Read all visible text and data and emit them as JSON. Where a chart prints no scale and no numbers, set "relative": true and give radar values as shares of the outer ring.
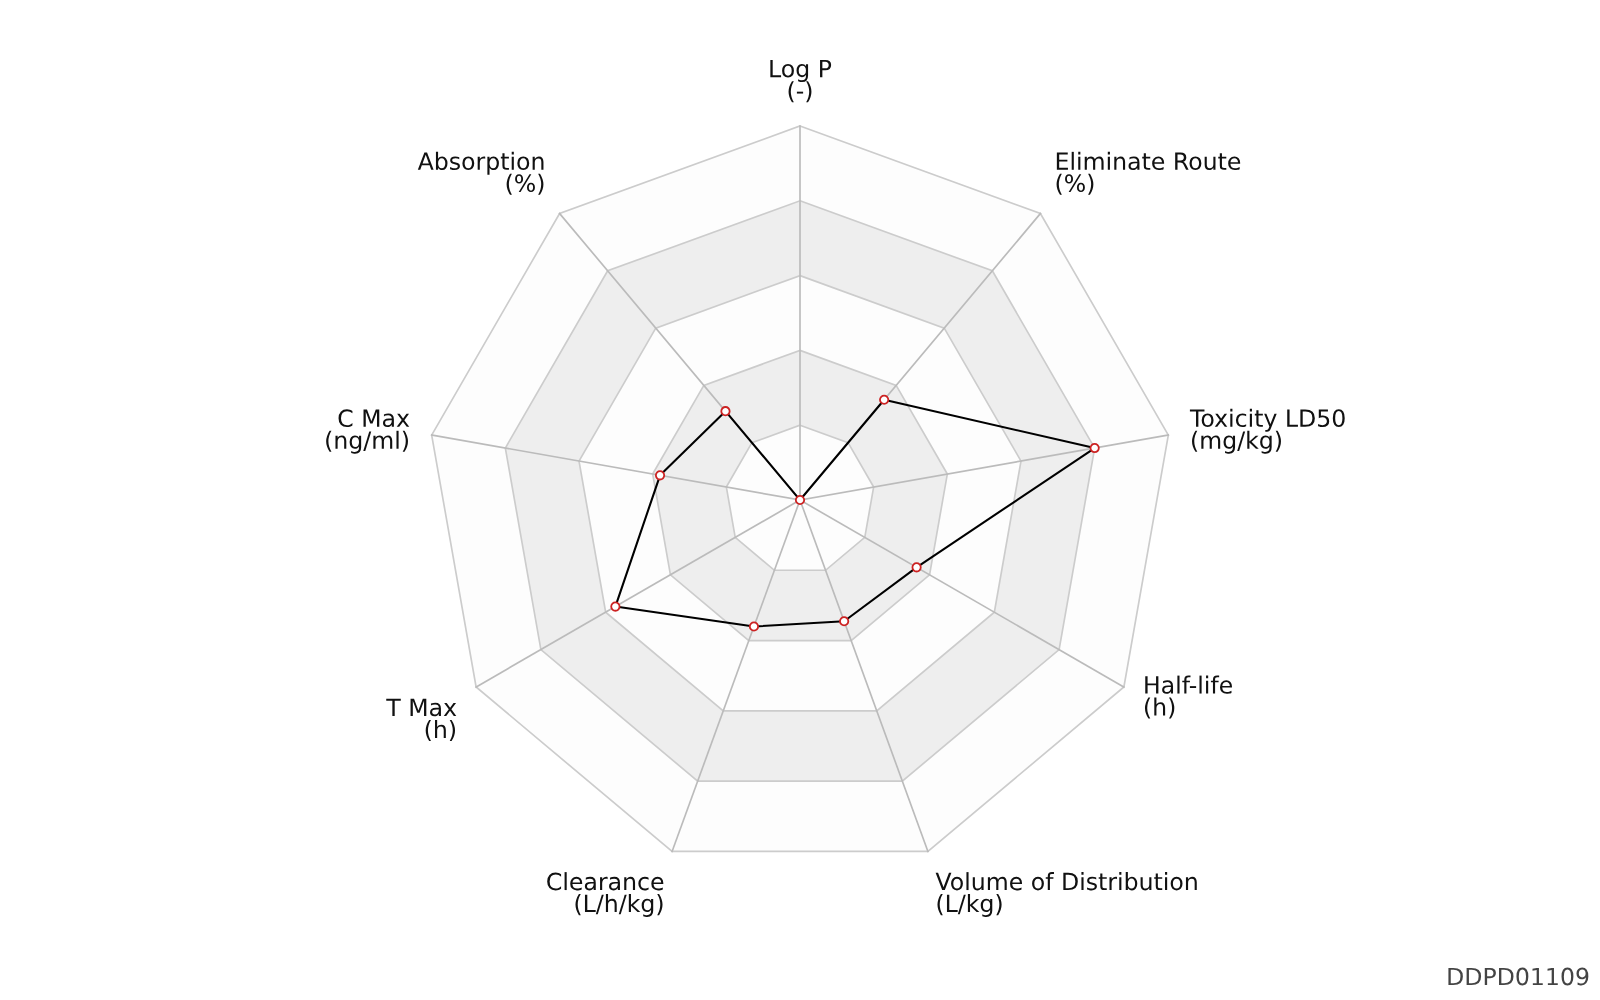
{
  "chart_data": {
    "type": "radar",
    "relative": true,
    "categories": [
      "Log P\n(-)",
      "Eliminate Route\n(%)",
      "Toxicity LD50\n(mg/kg)",
      "Half-life\n(h)",
      "Volume of Distribution\n(L/kg)",
      "Clearance\n(L/h/kg)",
      "T Max\n(h)",
      "C Max\n(ng/ml)",
      "Absorption\n(%)"
    ],
    "series": [
      {
        "color": "#000000",
        "values": [
          0,
          0.35,
          0.8,
          0.36,
          0.345,
          0.36,
          0.57,
          0.38,
          0.31
        ]
      }
    ],
    "marker": "circle",
    "line_style": "solid",
    "annotations": [
      "DDPD01109"
    ]
  }
}
